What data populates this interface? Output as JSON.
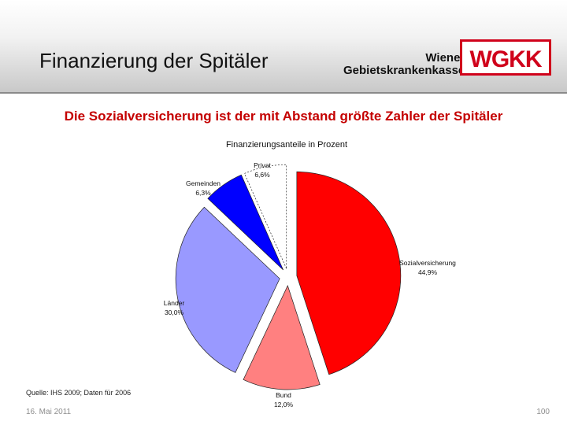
{
  "header": {
    "title": "Finanzierung der Spitäler",
    "brand_line1": "Wiener",
    "brand_line2": "Gebietskrankenkasse",
    "logo_text": "WGKK"
  },
  "subtitle": "Die Sozialversicherung ist der mit Abstand größte Zahler der Spitäler",
  "colors": {
    "accent": "#c40000",
    "sozialversicherung": "#ff0000",
    "bund": "#ff8080",
    "laender": "#9999ff",
    "gemeinden": "#0000ff",
    "privat": "#ffffff"
  },
  "chart_data": {
    "type": "pie",
    "title": "Finanzierungsanteile in Prozent",
    "slices": [
      {
        "label": "Sozialversicherung",
        "value_label": "44,9%",
        "value": 44.9,
        "color": "#ff0000"
      },
      {
        "label": "Bund",
        "value_label": "12,0%",
        "value": 12.0,
        "color": "#ff8080"
      },
      {
        "label": "Länder",
        "value_label": "30,0%",
        "value": 30.0,
        "color": "#9999ff"
      },
      {
        "label": "Gemeinden",
        "value_label": "6,3%",
        "value": 6.3,
        "color": "#0000ff"
      },
      {
        "label": "Privat",
        "value_label": "6,6%",
        "value": 6.6,
        "color": "#ffffff"
      }
    ],
    "exploded": true
  },
  "footer": {
    "source": "Quelle: IHS 2009; Daten für 2006",
    "date": "16. Mai 2011",
    "page": "100"
  }
}
